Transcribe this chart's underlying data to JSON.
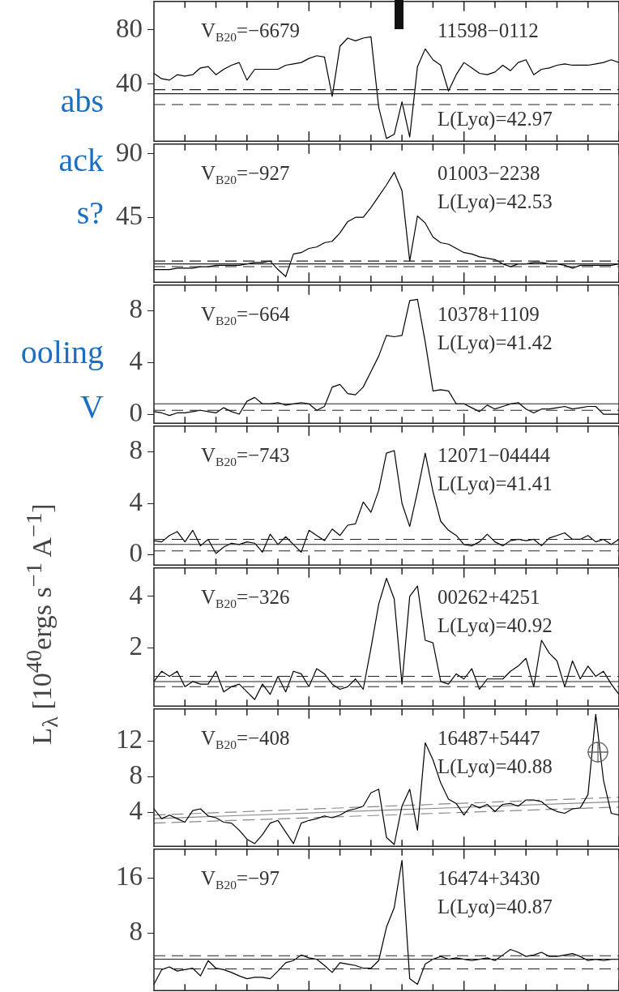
{
  "chart_data": [
    {
      "type": "line",
      "categories": [
        null,
        null,
        null,
        null,
        null,
        null,
        null,
        null,
        null,
        null,
        null,
        null,
        null,
        null,
        null,
        null,
        null,
        null,
        null,
        null,
        null,
        null,
        null,
        null,
        null,
        null,
        null,
        null,
        null,
        null,
        null,
        null,
        null,
        null,
        null,
        null,
        null,
        null,
        null,
        null,
        null,
        null,
        null,
        null,
        null,
        null,
        null,
        null,
        null,
        null,
        null,
        null,
        null,
        null,
        null,
        null,
        null,
        null,
        null,
        null,
        null
      ],
      "ylim": [
        -2,
        101
      ],
      "yticks": [
        40,
        80
      ],
      "annotations": [
        "V$_{B20}$=−6679",
        "11598−0112",
        "L(Lyα)=42.97"
      ],
      "ref_lines": [
        {
          "axis": "y",
          "value": 33,
          "line_style": "solid"
        },
        {
          "axis": "y",
          "value": 36,
          "line_style": "dashed"
        },
        {
          "axis": "y",
          "value": 25,
          "line_style": "dashed"
        }
      ],
      "series": [
        {
          "color": "#000000",
          "values": [
            48,
            44,
            43,
            47,
            46,
            47,
            52,
            53,
            47,
            51,
            54,
            56,
            43,
            51,
            51,
            51,
            51,
            54,
            55,
            56,
            59,
            61,
            60,
            31,
            68,
            74,
            72,
            74,
            75,
            23,
            0,
            3,
            27,
            1,
            53,
            66,
            58,
            54,
            35,
            47,
            56,
            52,
            48,
            47,
            49,
            54,
            50,
            56,
            58,
            47,
            51,
            52,
            54,
            55,
            54,
            54,
            54,
            55,
            56,
            58,
            56
          ]
        }
      ]
    },
    {
      "type": "line",
      "categories": [
        null,
        null,
        null,
        null,
        null,
        null,
        null,
        null,
        null,
        null,
        null,
        null,
        null,
        null,
        null,
        null,
        null,
        null,
        null,
        null,
        null,
        null,
        null,
        null,
        null,
        null,
        null,
        null,
        null,
        null,
        null,
        null,
        null,
        null,
        null,
        null,
        null,
        null,
        null,
        null,
        null,
        null,
        null,
        null,
        null,
        null,
        null,
        null,
        null,
        null,
        null,
        null,
        null,
        null,
        null,
        null,
        null,
        null,
        null,
        null,
        null
      ],
      "ylim": [
        -1,
        97
      ],
      "yticks": [
        45,
        90
      ],
      "annotations": [
        "V$_{B20}$=−927",
        "01003−2238",
        "L(Lyα)=42.53"
      ],
      "ref_lines": [
        {
          "axis": "y",
          "value": 12,
          "line_style": "solid"
        },
        {
          "axis": "y",
          "value": 14,
          "line_style": "dashed"
        },
        {
          "axis": "y",
          "value": 10,
          "line_style": "dashed"
        }
      ],
      "series": [
        {
          "color": "#000000",
          "values": [
            8,
            8,
            8,
            9,
            9,
            9,
            10,
            10,
            11,
            11,
            11,
            11,
            12,
            13,
            13,
            14,
            8,
            3,
            19,
            20,
            23,
            24,
            27,
            28,
            34,
            42,
            45,
            45,
            52,
            60,
            68,
            77,
            64,
            14,
            46,
            41,
            31,
            27,
            26,
            23,
            20,
            19,
            17,
            16,
            15,
            12,
            10,
            12,
            12,
            13,
            13,
            12,
            12,
            11,
            9,
            11,
            11,
            11,
            11,
            11,
            12
          ]
        }
      ]
    },
    {
      "type": "line",
      "categories": [
        null,
        null,
        null,
        null,
        null,
        null,
        null,
        null,
        null,
        null,
        null,
        null,
        null,
        null,
        null,
        null,
        null,
        null,
        null,
        null,
        null,
        null,
        null,
        null,
        null,
        null,
        null,
        null,
        null,
        null,
        null,
        null,
        null,
        null,
        null,
        null,
        null,
        null,
        null,
        null,
        null,
        null,
        null,
        null,
        null,
        null,
        null,
        null,
        null,
        null,
        null,
        null,
        null,
        null,
        null,
        null,
        null,
        null,
        null,
        null,
        null
      ],
      "ylim": [
        -0.7,
        10
      ],
      "yticks": [
        0,
        4,
        8
      ],
      "annotations": [
        "V$_{B20}$=−664",
        "10378+1109",
        "L(Lyα)=41.42"
      ],
      "ref_lines": [
        {
          "axis": "y",
          "value": 0.8,
          "line_style": "solid"
        },
        {
          "axis": "y",
          "value": 0.3,
          "line_style": "dashed"
        }
      ],
      "series": [
        {
          "color": "#000000",
          "values": [
            0.2,
            0.1,
            -0.1,
            0.1,
            0.1,
            0.2,
            0.3,
            0.2,
            0.1,
            0.5,
            0.2,
            0,
            1,
            1.3,
            0.8,
            0.8,
            0.9,
            0.7,
            0.8,
            0.9,
            0.8,
            0.3,
            0.6,
            2.1,
            2.3,
            1.6,
            1.5,
            2.1,
            3.3,
            4.5,
            6.1,
            6,
            6.1,
            8.8,
            8.9,
            5.6,
            1.8,
            1.9,
            1.8,
            0.8,
            0.8,
            0.5,
            0.2,
            0.7,
            0.4,
            0.6,
            0.8,
            0.9,
            0.4,
            0.1,
            0.4,
            0.4,
            0.5,
            0.6,
            0.4,
            0.5,
            0.6,
            0.6,
            0,
            0,
            0
          ]
        }
      ]
    },
    {
      "type": "line",
      "categories": [
        null,
        null,
        null,
        null,
        null,
        null,
        null,
        null,
        null,
        null,
        null,
        null,
        null,
        null,
        null,
        null,
        null,
        null,
        null,
        null,
        null,
        null,
        null,
        null,
        null,
        null,
        null,
        null,
        null,
        null,
        null,
        null,
        null,
        null,
        null,
        null,
        null,
        null,
        null,
        null,
        null,
        null,
        null,
        null,
        null,
        null,
        null,
        null,
        null,
        null,
        null,
        null,
        null,
        null,
        null,
        null,
        null,
        null,
        null,
        null,
        null
      ],
      "ylim": [
        -0.8,
        10
      ],
      "yticks": [
        0,
        4,
        8
      ],
      "annotations": [
        "V$_{B20}$=−743",
        "12071−04444",
        "L(Lyα)=41.41"
      ],
      "ref_lines": [
        {
          "axis": "y",
          "value": 0.8,
          "line_style": "solid"
        },
        {
          "axis": "y",
          "value": 1.2,
          "line_style": "dashed"
        },
        {
          "axis": "y",
          "value": 0.3,
          "line_style": "dashed"
        }
      ],
      "series": [
        {
          "color": "#000000",
          "values": [
            1.1,
            1,
            1.5,
            1.8,
            1,
            1.9,
            0.7,
            1.2,
            0.1,
            0.6,
            0.9,
            0.8,
            1,
            0.9,
            0.2,
            1.6,
            0.8,
            1.4,
            0.8,
            0.2,
            1.9,
            1.5,
            1.1,
            2,
            1.5,
            2.3,
            2.4,
            4.1,
            3.3,
            5,
            7.9,
            8.1,
            4,
            2.2,
            4.9,
            7.9,
            4.9,
            2.6,
            1.9,
            1.5,
            0.8,
            0.7,
            1,
            1.6,
            1,
            0.7,
            1.1,
            1.2,
            1.1,
            1.2,
            0.7,
            1.3,
            1.5,
            1.7,
            1.2,
            1.2,
            1.5,
            1,
            1.2,
            0.8,
            1.2
          ]
        }
      ]
    },
    {
      "type": "line",
      "categories": [
        null,
        null,
        null,
        null,
        null,
        null,
        null,
        null,
        null,
        null,
        null,
        null,
        null,
        null,
        null,
        null,
        null,
        null,
        null,
        null,
        null,
        null,
        null,
        null,
        null,
        null,
        null,
        null,
        null,
        null,
        null,
        null,
        null,
        null,
        null,
        null,
        null,
        null,
        null,
        null,
        null,
        null,
        null,
        null,
        null,
        null,
        null,
        null,
        null,
        null,
        null,
        null,
        null,
        null,
        null,
        null,
        null,
        null,
        null,
        null,
        null
      ],
      "ylim": [
        -0.25,
        5.1
      ],
      "yticks": [
        2,
        4
      ],
      "ylabel": "L$_{λ}$ [10$^{40}$ergs s$^{−1}$ A$^{−1}$]",
      "annotations": [
        "V$_{B20}$=−326",
        "00262+4251",
        "L(Lyα)=40.92"
      ],
      "ref_lines": [
        {
          "axis": "y",
          "value": 0.7,
          "line_style": "solid"
        },
        {
          "axis": "y",
          "value": 0.9,
          "line_style": "dashed"
        },
        {
          "axis": "y",
          "value": 0.5,
          "line_style": "dashed"
        }
      ],
      "series": [
        {
          "color": "#000000",
          "values": [
            0.7,
            1.1,
            0.9,
            1.1,
            0.5,
            0.7,
            0.6,
            0.6,
            1.1,
            0.3,
            0.5,
            0.6,
            0.3,
            0,
            0.6,
            0.2,
            0.9,
            0.3,
            1.1,
            1,
            0.5,
            1.2,
            1,
            0.6,
            0.4,
            0.5,
            0.8,
            0.4,
            2,
            3.7,
            4.7,
            3.9,
            0.6,
            4,
            4.4,
            2.3,
            2.2,
            0.7,
            0.6,
            1,
            0.8,
            1.2,
            0.4,
            0.8,
            0.8,
            0.8,
            1.1,
            1.3,
            1.6,
            0.5,
            2.3,
            1.8,
            1.5,
            0.5,
            1.5,
            0.8,
            1.3,
            0.9,
            1.1,
            0.6,
            0.2
          ]
        }
      ]
    },
    {
      "type": "line",
      "categories": [
        null,
        null,
        null,
        null,
        null,
        null,
        null,
        null,
        null,
        null,
        null,
        null,
        null,
        null,
        null,
        null,
        null,
        null,
        null,
        null,
        null,
        null,
        null,
        null,
        null,
        null,
        null,
        null,
        null,
        null,
        null,
        null,
        null,
        null,
        null,
        null,
        null,
        null,
        null,
        null,
        null,
        null,
        null,
        null,
        null,
        null,
        null,
        null,
        null,
        null,
        null,
        null,
        null,
        null,
        null,
        null,
        null,
        null,
        null,
        null,
        null
      ],
      "ylim": [
        0.2,
        15.6
      ],
      "yticks": [
        4,
        8,
        12
      ],
      "annotations": [
        "V$_{B20}$=−408",
        "16487+5447",
        "L(Lyα)=40.88"
      ],
      "series": [
        {
          "color": "#000000",
          "values": [
            4.4,
            3.3,
            3.7,
            3.3,
            2.9,
            4.2,
            4.4,
            3.6,
            3.4,
            2.9,
            2.8,
            2,
            1,
            0.5,
            1.5,
            2.8,
            3.1,
            1.8,
            0.5,
            2.8,
            3.1,
            3.3,
            3.6,
            3.4,
            3.7,
            4.2,
            4.4,
            4.7,
            6.2,
            6.6,
            1.2,
            0.4,
            4.7,
            6.6,
            2,
            11.8,
            9.9,
            7.3,
            5.5,
            5,
            3.7,
            4.9,
            4.5,
            4.9,
            4.1,
            4.9,
            5,
            4.7,
            5.4,
            5.4,
            5.2,
            4.5,
            4.1,
            3.9,
            4.4,
            4.5,
            6,
            15,
            7.6,
            3.9,
            3.7
          ]
        },
        {
          "color": "#888888",
          "line_style": "dashed",
          "values": [
            3.7,
            null,
            null,
            null,
            null,
            null,
            null,
            null,
            null,
            null,
            null,
            null,
            null,
            null,
            null,
            null,
            null,
            null,
            null,
            null,
            null,
            null,
            null,
            null,
            null,
            null,
            null,
            null,
            null,
            null,
            null,
            null,
            null,
            null,
            null,
            null,
            null,
            null,
            null,
            null,
            null,
            null,
            null,
            null,
            null,
            null,
            null,
            null,
            null,
            null,
            null,
            null,
            null,
            null,
            null,
            null,
            null,
            null,
            null,
            null,
            5.7
          ]
        },
        {
          "color": "#888888",
          "line_style": "solid",
          "values": [
            3.3,
            null,
            null,
            null,
            null,
            null,
            null,
            null,
            null,
            null,
            null,
            null,
            null,
            null,
            null,
            null,
            null,
            null,
            null,
            null,
            null,
            null,
            null,
            null,
            null,
            null,
            null,
            null,
            null,
            null,
            null,
            null,
            null,
            null,
            null,
            null,
            null,
            null,
            null,
            null,
            null,
            null,
            null,
            null,
            null,
            null,
            null,
            null,
            null,
            null,
            null,
            null,
            null,
            null,
            null,
            null,
            null,
            null,
            null,
            null,
            5.2
          ]
        },
        {
          "color": "#888888",
          "line_style": "dashed",
          "values": [
            2.8,
            null,
            null,
            null,
            null,
            null,
            null,
            null,
            null,
            null,
            null,
            null,
            null,
            null,
            null,
            null,
            null,
            null,
            null,
            null,
            null,
            null,
            null,
            null,
            null,
            null,
            null,
            null,
            null,
            null,
            null,
            null,
            null,
            null,
            null,
            null,
            null,
            null,
            null,
            null,
            null,
            null,
            null,
            null,
            null,
            null,
            null,
            null,
            null,
            null,
            null,
            null,
            null,
            null,
            null,
            null,
            null,
            null,
            null,
            null,
            4.6
          ]
        }
      ]
    },
    {
      "type": "line",
      "categories": [
        null,
        null,
        null,
        null,
        null,
        null,
        null,
        null,
        null,
        null,
        null,
        null,
        null,
        null,
        null,
        null,
        null,
        null,
        null,
        null,
        null,
        null,
        null,
        null,
        null,
        null,
        null,
        null,
        null,
        null,
        null,
        null,
        null,
        null,
        null,
        null,
        null,
        null,
        null,
        null,
        null,
        null,
        null,
        null,
        null,
        null,
        null,
        null,
        null,
        null,
        null,
        null,
        null,
        null,
        null,
        null,
        null,
        null,
        null,
        null,
        null
      ],
      "ylim": [
        -0.2,
        20.1
      ],
      "yticks": [
        8,
        16
      ],
      "annotations": [
        "V$_{B20}$=−97",
        "16474+3430",
        "L(Lyα)=40.87"
      ],
      "ref_lines": [
        {
          "axis": "y",
          "value": 4.3,
          "line_style": "solid"
        },
        {
          "axis": "y",
          "value": 4.8,
          "line_style": "dashed"
        },
        {
          "axis": "y",
          "value": 2.9,
          "line_style": "dashed"
        }
      ],
      "series": [
        {
          "color": "#000000",
          "values": [
            0.7,
            2.8,
            3.2,
            2.6,
            2.8,
            3,
            1.9,
            4.1,
            3,
            2.8,
            2.4,
            1.9,
            1.5,
            1.7,
            1.7,
            1.5,
            2.6,
            3.8,
            4.1,
            4.9,
            4.5,
            4.3,
            3.4,
            2.4,
            3.8,
            3.6,
            3.4,
            3,
            3,
            4.1,
            8.9,
            11.7,
            18.5,
            1.5,
            0.7,
            3.6,
            4.3,
            4.7,
            4.3,
            4.5,
            4.3,
            4.1,
            4.3,
            4.5,
            4.1,
            4.9,
            5.7,
            5.3,
            4.7,
            4.9,
            5.3,
            4.7,
            4.7,
            4.9,
            5.1,
            4.7,
            4.1,
            4.3,
            4.1,
            4.3,
            4.3
          ]
        }
      ]
    },
    {
      "type": "other",
      "annotations": [
        "abs",
        "ack",
        "s?",
        "ooling",
        "V"
      ]
    }
  ]
}
